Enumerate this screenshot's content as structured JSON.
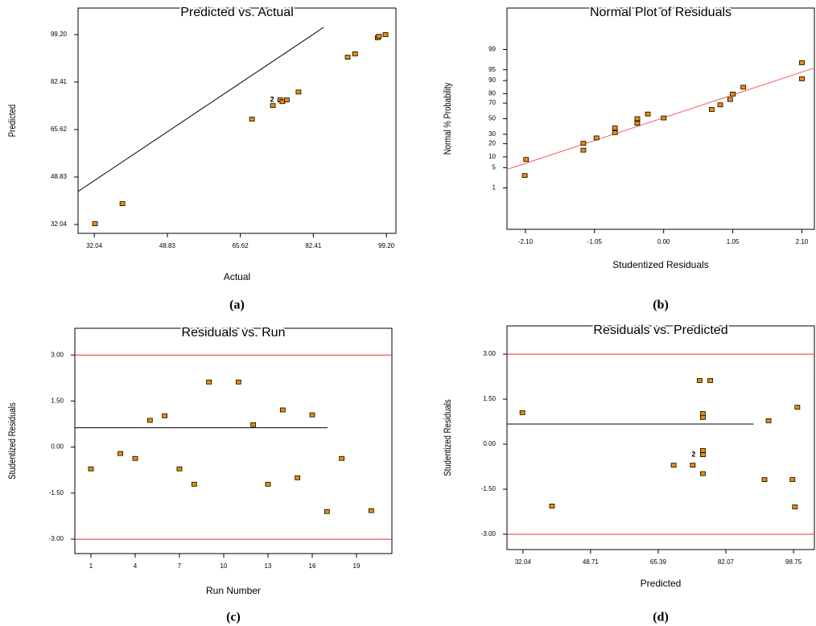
{
  "chart_data": [
    {
      "type": "scatter",
      "title": "Predicted vs. Actual",
      "xlabel": "Actual",
      "ylabel": "Predicted",
      "caption": "(a)",
      "x": [
        32.2,
        38.5,
        68.3,
        73.1,
        74.8,
        75.3,
        76.3,
        79.0,
        90.3,
        92.0,
        97.2,
        97.5,
        99.0
      ],
      "y": [
        32.3,
        39.4,
        69.3,
        74.1,
        76.1,
        75.5,
        76.1,
        78.9,
        91.2,
        92.4,
        98.1,
        98.6,
        99.2
      ],
      "color": "#f08c00",
      "xlim": [
        28.3,
        101.4
      ],
      "ylim": [
        28.9,
        108.6
      ],
      "xticks": [
        32.04,
        48.83,
        65.62,
        82.41,
        {
          "value": 99.2,
          "label": "99.20"
        }
      ],
      "yticks": [
        32.04,
        48.83,
        65.62,
        82.41,
        {
          "value": 99.2,
          "label": "99.20"
        }
      ],
      "lines": [
        {
          "x": [
            28.3,
            84.8
          ],
          "y": [
            43.7,
            101.8
          ],
          "color": "#000000"
        }
      ],
      "annotations": [
        {
          "text": "2",
          "x": 73.4,
          "y": 76.1
        }
      ]
    },
    {
      "type": "scatter",
      "title": "Normal Plot of Residuals",
      "xlabel": "Studentized Residuals",
      "ylabel": "Normal % Probability",
      "caption": "(b)",
      "x": [
        -2.11,
        -2.09,
        -1.22,
        -1.22,
        -1.02,
        -0.74,
        -0.74,
        -0.4,
        -0.4,
        -0.24,
        0.0,
        0.73,
        0.86,
        1.01,
        1.05,
        1.21,
        2.1,
        2.1
      ],
      "y": [
        2.8,
        8.5,
        14.5,
        20.4,
        25.9,
        32.0,
        37.8,
        43.8,
        50,
        56.2,
        51,
        62.2,
        67.9,
        74.1,
        79.6,
        85.5,
        91.0,
        97.0
      ],
      "color": "#f08c00",
      "yscale": "probit",
      "xlim": [
        -2.38,
        2.29
      ],
      "ylim": [
        0.01,
        99.99
      ],
      "xticks": [
        {
          "value": -2.1,
          "label": "-2.10"
        },
        -1.05,
        {
          "value": 0,
          "label": "0.00"
        },
        1.05,
        {
          "value": 2.1,
          "label": "2.10"
        }
      ],
      "yticks": [
        1,
        5,
        10,
        20,
        30,
        50,
        70,
        80,
        90,
        95,
        99
      ],
      "lines": [
        {
          "x": [
            -2.38,
            2.29
          ],
          "y": [
            4.4,
            95.6
          ],
          "color": "#f06060"
        }
      ]
    },
    {
      "type": "scatter",
      "title": "Residuals vs. Run",
      "xlabel": "Run Number",
      "ylabel": "Studentized Residuals",
      "caption": "(c)",
      "x": [
        1,
        3,
        4,
        5,
        6,
        7,
        8,
        9,
        11,
        12,
        13,
        14,
        15,
        16,
        17,
        18,
        20
      ],
      "y": [
        -0.71,
        -0.21,
        -0.37,
        0.87,
        1.02,
        -0.71,
        -1.21,
        2.12,
        2.12,
        0.73,
        -1.21,
        1.21,
        -1.0,
        1.05,
        -2.1,
        -0.37,
        -2.07
      ],
      "color": "#f08c00",
      "xlim": [
        -0.09,
        21.4
      ],
      "ylim": [
        -3.47,
        3.87
      ],
      "xticks": [
        1,
        4,
        7,
        10,
        13,
        16,
        19
      ],
      "yticks": [
        {
          "value": -3,
          "label": "-3.00"
        },
        {
          "value": -1.5,
          "label": "-1.50"
        },
        {
          "value": 0,
          "label": "0.00"
        },
        {
          "value": 1.5,
          "label": "1.50"
        },
        {
          "value": 3,
          "label": "3.00"
        }
      ],
      "hlines": [
        {
          "value": 3,
          "color": "#e03030"
        },
        {
          "value": -3,
          "color": "#e03030"
        }
      ],
      "lines": [
        {
          "x": [
            -0.09,
            17.04
          ],
          "y": [
            0.63,
            0.63
          ],
          "color": "#000000"
        }
      ]
    },
    {
      "type": "scatter",
      "title": "Residuals vs. Predicted",
      "xlabel": "Predicted",
      "ylabel": "Studentized Residuals",
      "caption": "(d)",
      "x": [
        31.9,
        39.2,
        69.2,
        73.9,
        75.6,
        78.2,
        76.4,
        76.4,
        76.4,
        76.4,
        76.4,
        92.6,
        91.6,
        98.5,
        99.1,
        99.7
      ],
      "y": [
        1.05,
        -2.06,
        -0.7,
        -0.7,
        2.12,
        2.12,
        1.02,
        0.89,
        -0.21,
        -0.35,
        -0.98,
        0.78,
        -1.18,
        -1.18,
        -2.09,
        1.23
      ],
      "color": "#f08c00",
      "xlim": [
        28.1,
        103.9
      ],
      "ylim": [
        -3.51,
        3.94
      ],
      "xticks": [
        32.04,
        48.71,
        65.39,
        82.07,
        98.75
      ],
      "yticks": [
        {
          "value": -3,
          "label": "-3.00"
        },
        {
          "value": -1.5,
          "label": "-1.50"
        },
        {
          "value": 0,
          "label": "0.00"
        },
        {
          "value": 1.5,
          "label": "1.50"
        },
        {
          "value": 3,
          "label": "3.00"
        }
      ],
      "hlines": [
        {
          "value": 3,
          "color": "#e03030"
        },
        {
          "value": -3,
          "color": "#e03030"
        }
      ],
      "lines": [
        {
          "x": [
            28.1,
            88.9
          ],
          "y": [
            0.67,
            0.67
          ],
          "color": "#000000"
        }
      ],
      "annotations": [
        {
          "text": "2",
          "x": 74.6,
          "y": -0.35
        }
      ]
    }
  ]
}
